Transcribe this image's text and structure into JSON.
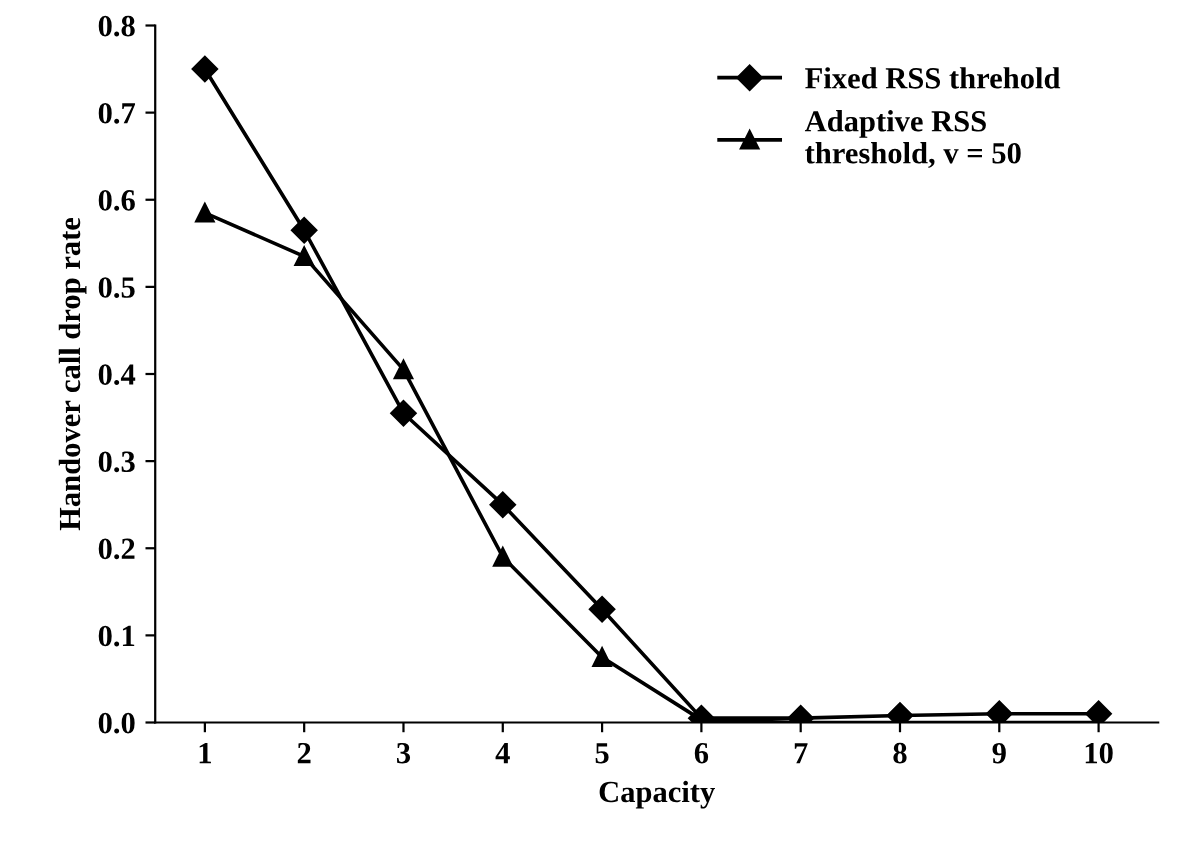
{
  "chart_data": {
    "type": "line",
    "xlabel": "Capacity",
    "ylabel": "Handover call drop rate",
    "x": [
      1,
      2,
      3,
      4,
      5,
      6,
      7,
      8,
      9,
      10
    ],
    "xlim": [
      0.5,
      10.6
    ],
    "xticks": [
      1,
      2,
      3,
      4,
      5,
      6,
      7,
      8,
      9,
      10
    ],
    "ylim": [
      0,
      0.8
    ],
    "yticks": [
      {
        "value": 0,
        "label": "0.0"
      },
      0.1,
      0.2,
      0.3,
      0.4,
      0.5,
      0.6,
      0.7,
      0.8
    ],
    "grid": false,
    "legend": "top right",
    "line_style": "solid",
    "series": [
      {
        "name": "Fixed RSS threhold",
        "color": "#000000",
        "marker": "diamond",
        "values": [
          0.75,
          0.565,
          0.355,
          0.25,
          0.13,
          0.005,
          0.005,
          0.008,
          0.01,
          0.01
        ]
      },
      {
        "name": "Adaptive RSS\nthreshold, v = 50",
        "color": "#000000",
        "marker": "triangle",
        "values": [
          0.585,
          0.535,
          0.405,
          0.19,
          0.075,
          0.003,
          0,
          0,
          0,
          0
        ]
      }
    ]
  }
}
